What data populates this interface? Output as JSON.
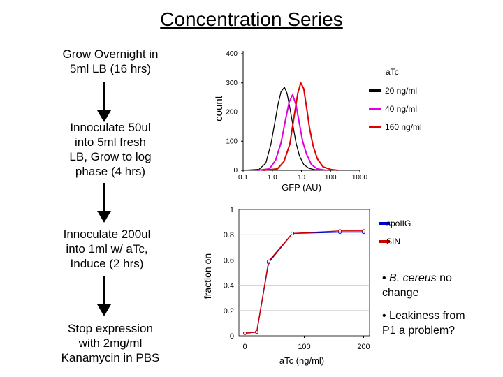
{
  "slide": {
    "title": "Concentration Series",
    "steps": [
      {
        "text": [
          "Grow Overnight in",
          "5ml LB (16 hrs)"
        ]
      },
      {
        "text": [
          "Innoculate 50ul",
          "into 5ml fresh",
          "LB, Grow to log",
          "phase (4 hrs)"
        ]
      },
      {
        "text": [
          "Innoculate 200ul",
          "into 1ml w/ aTc,",
          "Induce (2 hrs)"
        ]
      },
      {
        "text": [
          "Stop expression",
          "with 2mg/ml",
          "Kanamycin in PBS"
        ]
      }
    ],
    "notes": [
      {
        "parts": [
          {
            "t": "• ",
            "i": false
          },
          {
            "t": "B. cereus",
            "i": true
          },
          {
            "t": " no",
            "i": false
          }
        ],
        "line2": "change"
      },
      {
        "parts": [
          {
            "t": "• Leakiness from",
            "i": false
          }
        ],
        "line2": "P1 a problem?"
      }
    ]
  },
  "chart_data": [
    {
      "type": "line",
      "title": "",
      "xlabel": "GFP (AU)",
      "ylabel": "count",
      "xscale": "log",
      "xlim": [
        0.1,
        1000
      ],
      "ylim": [
        0,
        400
      ],
      "xticks": [
        0.1,
        1,
        10,
        100,
        1000
      ],
      "xtick_labels": [
        "0.1",
        "1.0",
        "10",
        "100",
        "1000"
      ],
      "yticks": [
        0,
        100,
        200,
        300,
        400
      ],
      "ytick_labels": [
        "0",
        "100",
        "200",
        "300",
        "400"
      ],
      "legend_title": "aTc",
      "legend_position": "right",
      "series": [
        {
          "name": "20 ng/ml",
          "color": "#000000",
          "x": [
            0.1,
            0.35,
            0.6,
            0.9,
            1.2,
            1.6,
            2.0,
            2.6,
            3.2,
            4.0,
            5.0,
            6.5,
            8.5,
            12,
            18,
            30,
            60
          ],
          "y": [
            0,
            3,
            25,
            90,
            160,
            230,
            270,
            285,
            265,
            215,
            160,
            95,
            50,
            20,
            7,
            2,
            0
          ]
        },
        {
          "name": "40 ng/ml",
          "color": "#e000e0",
          "x": [
            0.3,
            0.8,
            1.3,
            2.0,
            2.8,
            3.8,
            5.0,
            6.5,
            8.5,
            11,
            15,
            22,
            35,
            70
          ],
          "y": [
            0,
            5,
            35,
            95,
            170,
            235,
            260,
            225,
            160,
            100,
            55,
            20,
            5,
            0
          ]
        },
        {
          "name": "160 ng/ml",
          "color": "#e00000",
          "x": [
            0.5,
            1.5,
            2.5,
            4.0,
            5.5,
            7.5,
            9.5,
            12,
            15,
            19,
            25,
            35,
            55,
            100,
            180
          ],
          "y": [
            0,
            5,
            30,
            90,
            180,
            265,
            300,
            280,
            215,
            145,
            85,
            40,
            12,
            3,
            0
          ]
        }
      ]
    },
    {
      "type": "line",
      "title": "",
      "xlabel": "aTc (ng/ml)",
      "ylabel": "fraction on",
      "xlim": [
        -10,
        210
      ],
      "ylim": [
        0,
        1
      ],
      "xticks": [
        0,
        100,
        200
      ],
      "xtick_labels": [
        "0",
        "100",
        "200"
      ],
      "yticks": [
        0,
        0.2,
        0.4,
        0.6,
        0.8,
        1
      ],
      "ytick_labels": [
        "0",
        "0.2",
        "0.4",
        "0.6",
        "0.8",
        "1"
      ],
      "legend_position": "right",
      "series": [
        {
          "name": "spoIIG",
          "color": "#0000cc",
          "x": [
            0,
            20,
            40,
            80,
            160,
            200
          ],
          "y": [
            0.02,
            0.03,
            0.58,
            0.81,
            0.82,
            0.82
          ]
        },
        {
          "name": "SIN",
          "color": "#cc0000",
          "x": [
            0,
            20,
            40,
            80,
            160,
            200
          ],
          "y": [
            0.02,
            0.03,
            0.59,
            0.81,
            0.83,
            0.83
          ]
        }
      ]
    }
  ]
}
